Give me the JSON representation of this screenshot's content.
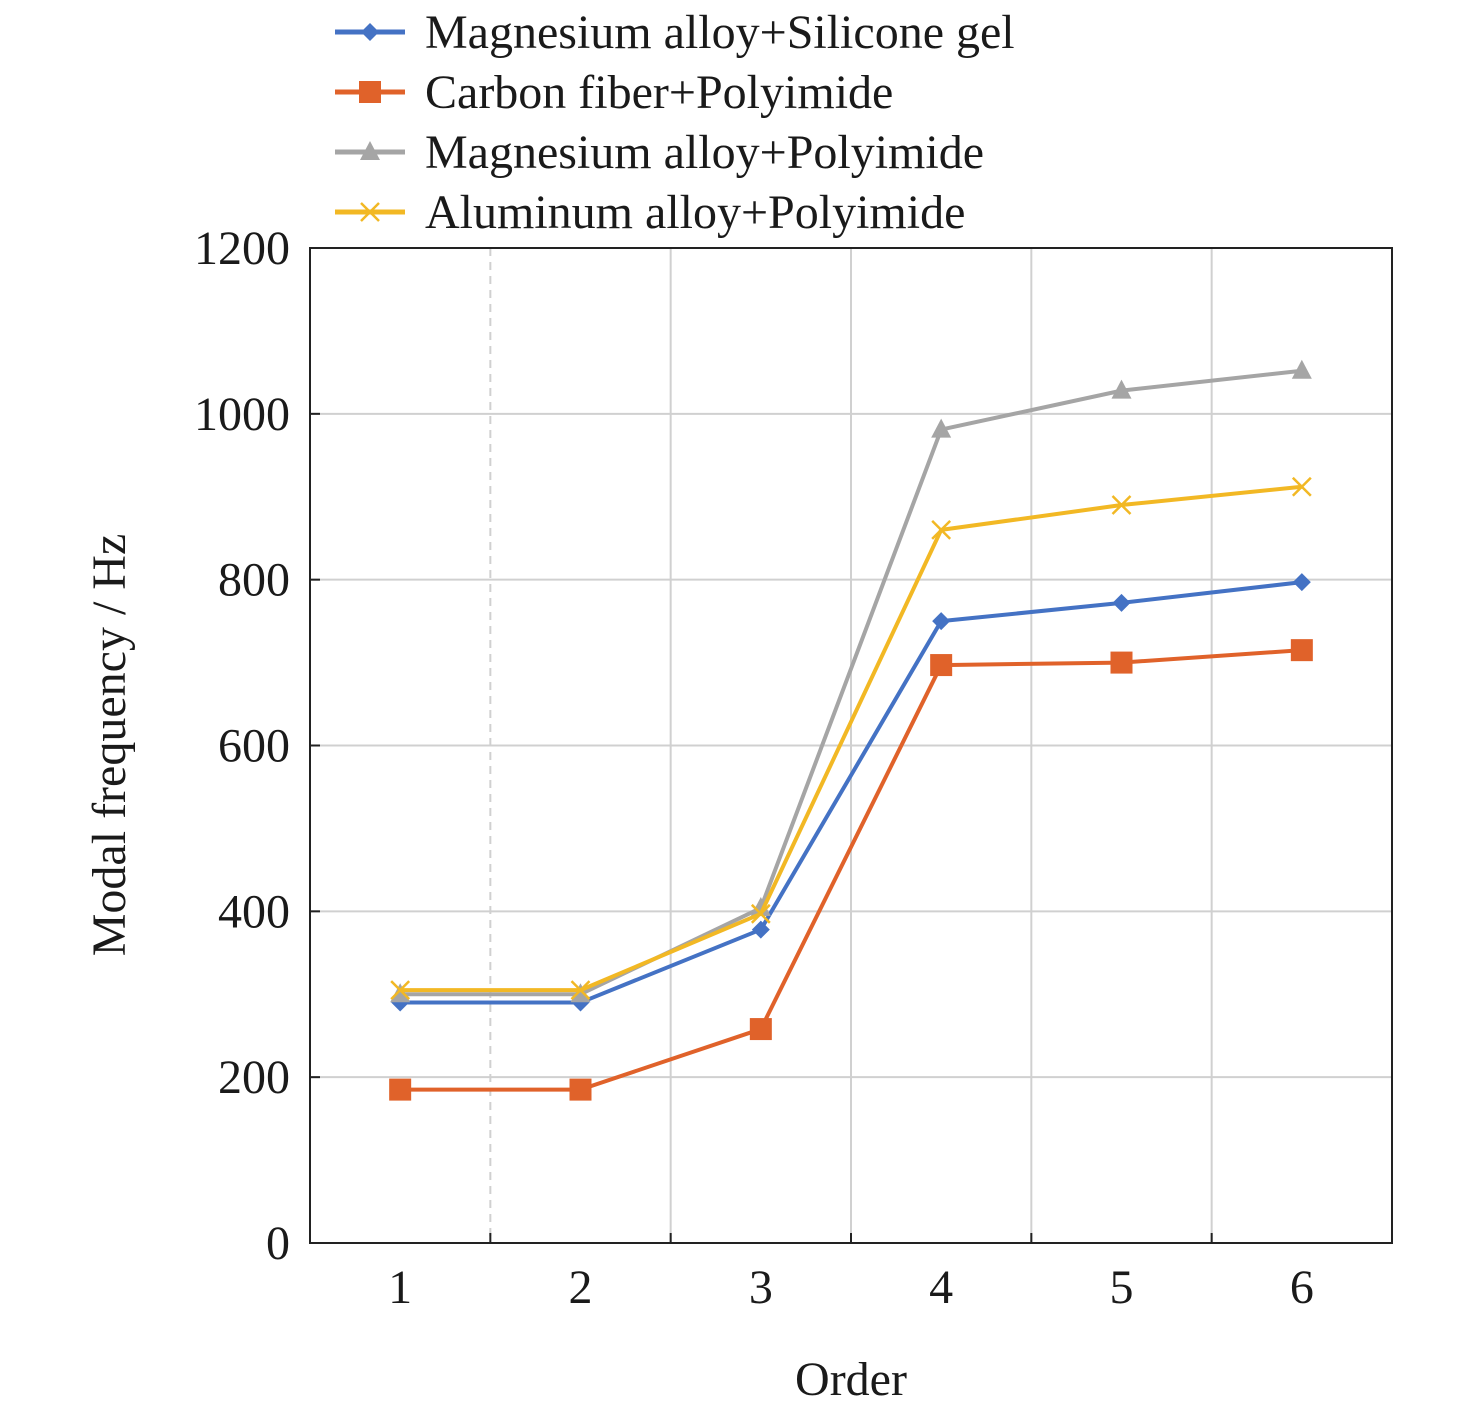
{
  "chart_data": {
    "type": "line",
    "title": "",
    "xlabel": "Order",
    "ylabel": "Modal frequency / Hz",
    "x": [
      1,
      2,
      3,
      4,
      5,
      6
    ],
    "xlim": [
      0.5,
      6.5
    ],
    "ylim": [
      0,
      1200
    ],
    "yticks": [
      0,
      200,
      400,
      600,
      800,
      1000,
      1200
    ],
    "xticks": [
      1,
      2,
      3,
      4,
      5,
      6
    ],
    "grid": true,
    "legend_position": "top",
    "series": [
      {
        "name": "Magnesium alloy+Silicone gel",
        "color": "#4472C4",
        "marker": "diamond",
        "values": [
          290,
          290,
          378,
          750,
          772,
          797
        ]
      },
      {
        "name": "Carbon fiber+Polyimide",
        "color": "#E0622A",
        "marker": "square",
        "values": [
          185,
          185,
          258,
          697,
          700,
          715
        ]
      },
      {
        "name": "Magnesium alloy+Polyimide",
        "color": "#A5A5A5",
        "marker": "triangle",
        "values": [
          300,
          300,
          404,
          981,
          1028,
          1052
        ]
      },
      {
        "name": "Aluminum alloy+Polyimide",
        "color": "#F2B824",
        "marker": "x",
        "values": [
          305,
          305,
          397,
          860,
          890,
          912
        ]
      }
    ]
  }
}
